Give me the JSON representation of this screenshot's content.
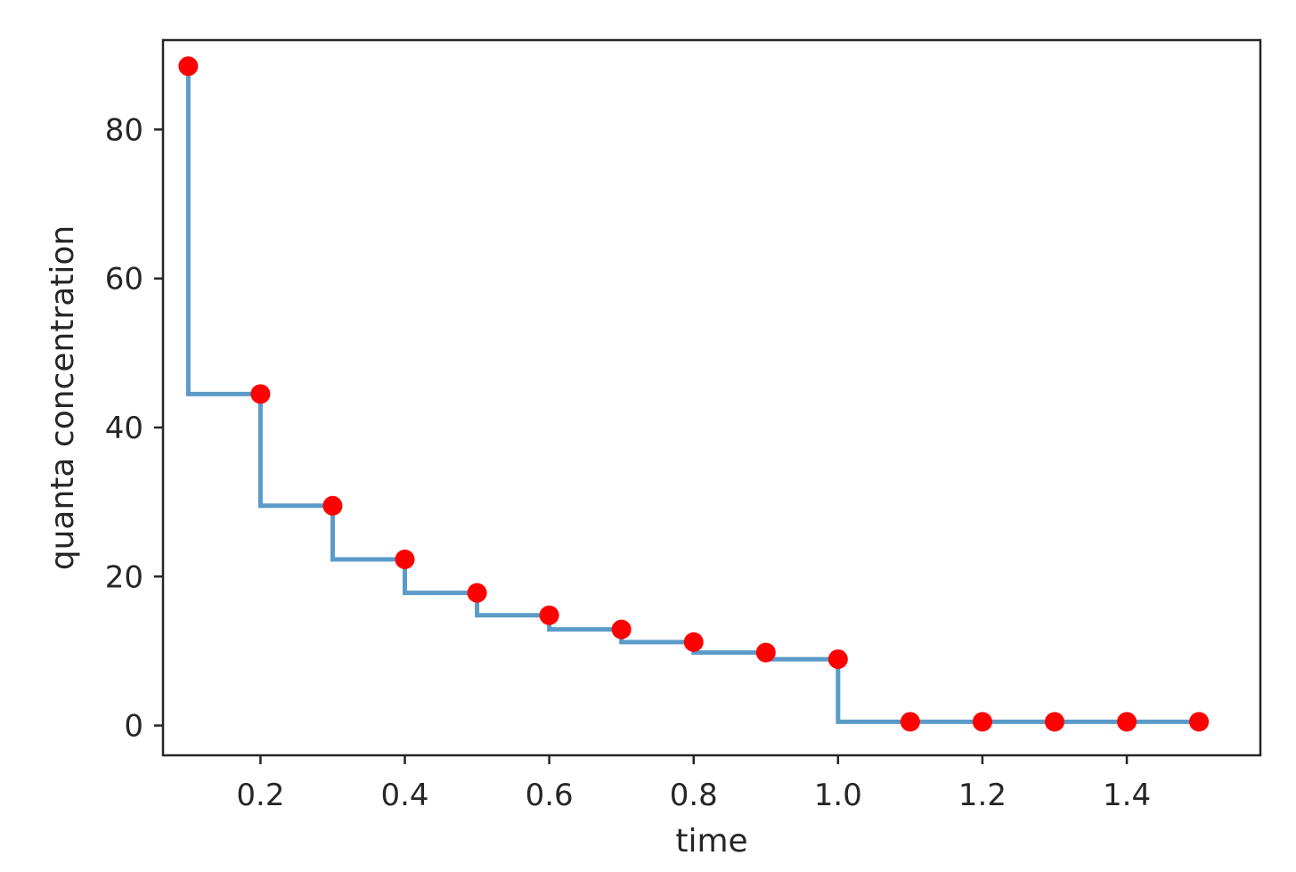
{
  "chart_data": {
    "type": "line",
    "title": "",
    "xlabel": "time",
    "ylabel": "quanta concentration",
    "xlim": [
      0.065,
      1.585
    ],
    "ylim": [
      -4.0,
      92.0
    ],
    "xticks": [
      0.2,
      0.4,
      0.6,
      0.8,
      1.0,
      1.2,
      1.4
    ],
    "xtick_labels": [
      "0.2",
      "0.4",
      "0.6",
      "0.8",
      "1.0",
      "1.2",
      "1.4"
    ],
    "yticks": [
      0,
      20,
      40,
      60,
      80
    ],
    "ytick_labels": [
      "0",
      "20",
      "40",
      "60",
      "80"
    ],
    "grid": false,
    "legend": "none",
    "series": [
      {
        "kind": "step",
        "step_where": "pre",
        "color": "#5b9bc8",
        "x": [
          0.1,
          0.2,
          0.3,
          0.4,
          0.5,
          0.6,
          0.7,
          0.8,
          0.9,
          1.0,
          1.1,
          1.2,
          1.3,
          1.4,
          1.5
        ],
        "y": [
          88.5,
          44.5,
          29.5,
          22.3,
          17.8,
          14.8,
          12.9,
          11.2,
          9.8,
          8.9,
          0.5,
          0.5,
          0.5,
          0.5,
          0.5
        ]
      },
      {
        "kind": "scatter",
        "color": "#ff0000",
        "x": [
          0.1,
          0.2,
          0.3,
          0.4,
          0.5,
          0.6,
          0.7,
          0.8,
          0.9,
          1.0,
          1.1,
          1.2,
          1.3,
          1.4,
          1.5
        ],
        "y": [
          88.5,
          44.5,
          29.5,
          22.3,
          17.8,
          14.8,
          12.9,
          11.2,
          9.8,
          8.9,
          0.5,
          0.5,
          0.5,
          0.5,
          0.5
        ]
      }
    ]
  }
}
